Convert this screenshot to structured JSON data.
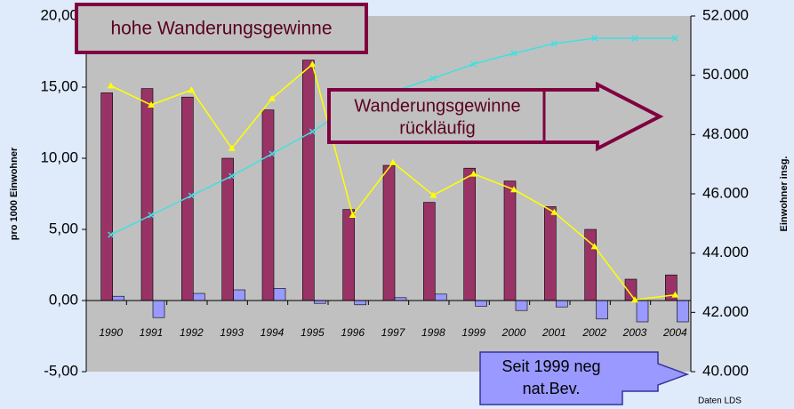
{
  "chart_data": {
    "type": "bar_line",
    "y_label": "pro 1000 Einwohner",
    "y2_label": "Einwohner insg.",
    "categories": [
      "1990",
      "1991",
      "1992",
      "1993",
      "1994",
      "1995",
      "1996",
      "1997",
      "1998",
      "1999",
      "2000",
      "2001",
      "2002",
      "2003",
      "2004"
    ],
    "ylim": [
      -5,
      20
    ],
    "yticks": [
      {
        "value": -5,
        "label": "-5,00"
      },
      {
        "value": 0,
        "label": "0,00"
      },
      {
        "value": 5,
        "label": "5,00"
      },
      {
        "value": 10,
        "label": "10,00"
      },
      {
        "value": 15,
        "label": "15,00"
      },
      {
        "value": 20,
        "label": "20,00"
      }
    ],
    "y2lim": [
      40000,
      52000
    ],
    "y2ticks": [
      {
        "value": 40000,
        "label": "40.000"
      },
      {
        "value": 42000,
        "label": "42.000"
      },
      {
        "value": 44000,
        "label": "44.000"
      },
      {
        "value": 46000,
        "label": "46.000"
      },
      {
        "value": 48000,
        "label": "48.000"
      },
      {
        "value": 50000,
        "label": "50.000"
      },
      {
        "value": 52000,
        "label": "52.000"
      }
    ],
    "series": [
      {
        "kind": "bar",
        "color": "#993366",
        "values": [
          14.6,
          14.9,
          14.3,
          10.0,
          13.4,
          16.9,
          6.4,
          9.5,
          6.9,
          9.3,
          8.4,
          6.6,
          5.0,
          1.5,
          1.8
        ]
      },
      {
        "kind": "bar",
        "color": "#9999ff",
        "values": [
          0.3,
          -1.2,
          0.5,
          0.75,
          0.85,
          -0.2,
          -0.3,
          0.2,
          0.45,
          -0.4,
          -0.7,
          -0.45,
          -1.3,
          -1.5,
          -1.5
        ]
      },
      {
        "kind": "line",
        "color": "#ffff00",
        "marker": "triangle",
        "values": [
          15.1,
          13.75,
          14.8,
          10.7,
          14.2,
          16.6,
          6.0,
          9.7,
          7.4,
          8.9,
          7.8,
          6.2,
          3.8,
          0.05,
          0.4
        ]
      },
      {
        "kind": "line",
        "color": "#40e0e0",
        "marker": "x",
        "axis": "y2",
        "values": [
          44620,
          45280,
          45940,
          46600,
          47350,
          48100,
          49000,
          49450,
          49900,
          50380,
          50740,
          51070,
          51250,
          51250,
          51250
        ]
      }
    ],
    "annotations": [
      {
        "lines": [
          "hohe Wanderungsgewinne"
        ]
      },
      {
        "lines": [
          "Wanderungsgewinne",
          "rückläufig"
        ]
      },
      {
        "lines": [
          "Seit 1999 neg",
          "nat.Bev."
        ]
      }
    ],
    "source": "Daten LDS"
  }
}
